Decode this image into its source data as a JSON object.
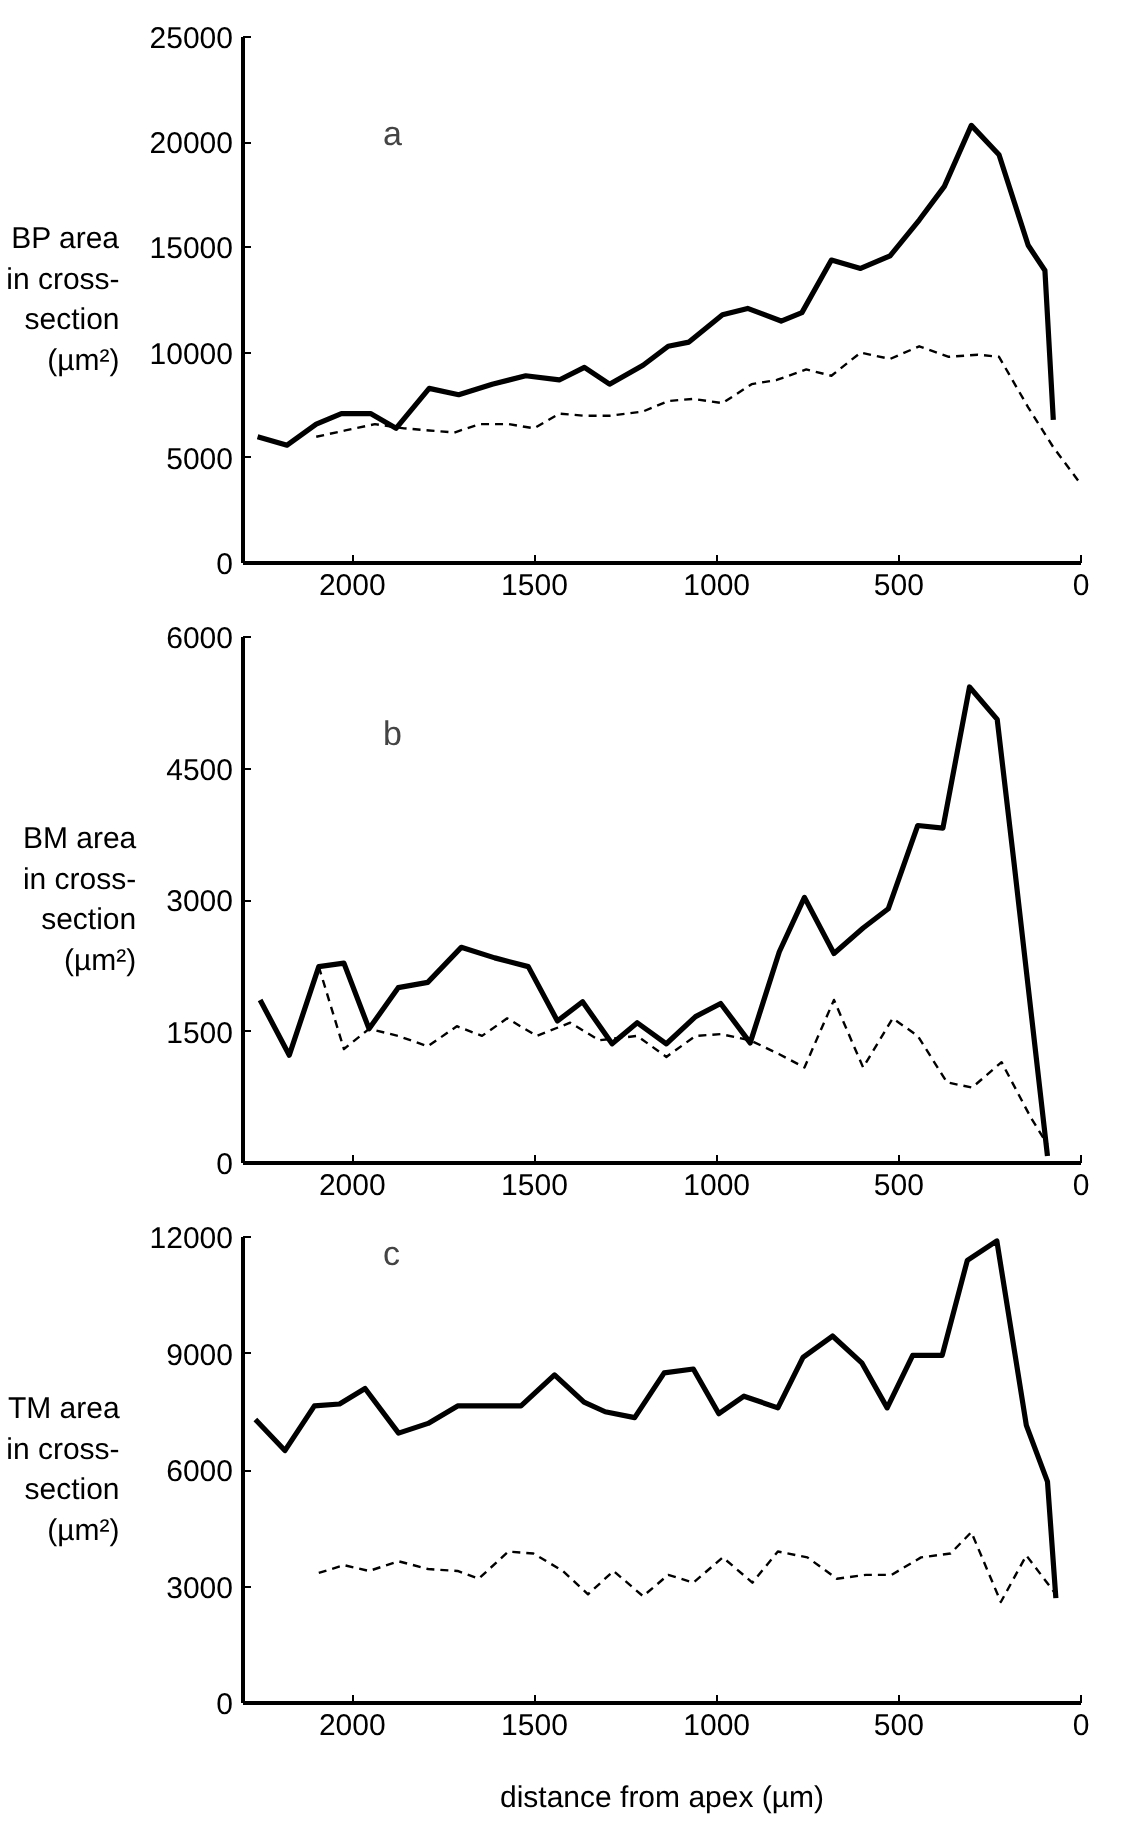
{
  "chart_data": [
    {
      "type": "line",
      "ylabel": "BP area\nin cross-\nsection\n(µm²)",
      "annotations": [
        "a"
      ],
      "xlim": [
        2300,
        0
      ],
      "xticks": [
        2000,
        1500,
        1000,
        500,
        0
      ],
      "ylim": [
        0,
        25000
      ],
      "yticks": [
        0,
        5000,
        10000,
        15000,
        20000,
        25000
      ],
      "grid": false,
      "marker": "none",
      "series": [
        {
          "color": "#000000",
          "line_style": "solid",
          "x": [
            2260,
            2179,
            2099,
            2030,
            1950,
            1880,
            1789,
            1708,
            1616,
            1524,
            1432,
            1363,
            1294,
            1202,
            1133,
            1076,
            984,
            915,
            823,
            766,
            685,
            605,
            524,
            444,
            375,
            301,
            225,
            145,
            99,
            76
          ],
          "values": [
            6000,
            5600,
            6600,
            7100,
            7100,
            6400,
            8300,
            8000,
            8500,
            8900,
            8700,
            9300,
            8500,
            9400,
            10300,
            10500,
            11800,
            12100,
            11500,
            11900,
            14400,
            14000,
            14600,
            16300,
            17900,
            20800,
            19400,
            15100,
            13900,
            6800
          ]
        },
        {
          "color": "#000000",
          "line_style": "dashed",
          "x": [
            2099,
            2019,
            1938,
            1858,
            1789,
            1720,
            1651,
            1570,
            1501,
            1432,
            1363,
            1294,
            1202,
            1133,
            1064,
            984,
            904,
            835,
            754,
            685,
            605,
            524,
            444,
            363,
            283,
            225,
            145,
            76,
            7
          ],
          "values": [
            6000,
            6300,
            6600,
            6400,
            6300,
            6200,
            6600,
            6600,
            6400,
            7100,
            7000,
            7000,
            7200,
            7700,
            7800,
            7600,
            8500,
            8700,
            9200,
            8900,
            10000,
            9700,
            10300,
            9800,
            9900,
            9800,
            7400,
            5500,
            3900
          ]
        }
      ]
    },
    {
      "type": "line",
      "ylabel": "BM area\nin cross-\nsection\n(µm²)",
      "annotations": [
        "b"
      ],
      "xlim": [
        2300,
        0
      ],
      "xticks": [
        2000,
        1500,
        1000,
        500,
        0
      ],
      "ylim": [
        0,
        6000
      ],
      "yticks": [
        0,
        1500,
        3000,
        4500,
        6000
      ],
      "grid": false,
      "marker": "none",
      "series": [
        {
          "color": "#000000",
          "line_style": "solid",
          "x": [
            2253,
            2173,
            2092,
            2023,
            1954,
            1874,
            1793,
            1701,
            1609,
            1517,
            1437,
            1368,
            1287,
            1218,
            1138,
            1058,
            989,
            908,
            828,
            759,
            678,
            598,
            529,
            448,
            379,
            306,
            230,
            184,
            92
          ],
          "values": [
            1860,
            1230,
            2240,
            2280,
            1530,
            2000,
            2060,
            2460,
            2340,
            2240,
            1620,
            1840,
            1360,
            1600,
            1360,
            1670,
            1820,
            1370,
            2410,
            3030,
            2390,
            2680,
            2900,
            3850,
            3820,
            5430,
            5060,
            3430,
            80
          ]
        },
        {
          "color": "#000000",
          "line_style": "dashed",
          "x": [
            2092,
            2023,
            1954,
            1874,
            1793,
            1713,
            1644,
            1575,
            1494,
            1402,
            1322,
            1218,
            1138,
            1058,
            989,
            908,
            828,
            759,
            678,
            598,
            517,
            448,
            368,
            299,
            218,
            138,
            92
          ],
          "values": [
            2240,
            1300,
            1530,
            1450,
            1330,
            1560,
            1450,
            1650,
            1450,
            1600,
            1400,
            1450,
            1210,
            1450,
            1470,
            1400,
            1240,
            1090,
            1860,
            1090,
            1650,
            1450,
            920,
            860,
            1150,
            520,
            210
          ]
        }
      ]
    },
    {
      "type": "line",
      "ylabel": "TM area\nin cross-\nsection\n(µm²)",
      "xlabel": "distance from apex (µm)",
      "annotations": [
        "c"
      ],
      "xlim": [
        2300,
        0
      ],
      "xticks": [
        2000,
        1500,
        1000,
        500,
        0
      ],
      "ylim": [
        0,
        12000
      ],
      "yticks": [
        0,
        3000,
        6000,
        9000,
        12000
      ],
      "grid": false,
      "marker": "none",
      "series": [
        {
          "color": "#000000",
          "line_style": "solid",
          "x": [
            2266,
            2185,
            2104,
            2035,
            1965,
            1873,
            1792,
            1711,
            1618,
            1537,
            1445,
            1364,
            1306,
            1225,
            1144,
            1064,
            994,
            925,
            832,
            763,
            682,
            601,
            532,
            462,
            381,
            312,
            231,
            150,
            92,
            69
          ],
          "values": [
            7300,
            6500,
            7650,
            7700,
            8100,
            6950,
            7200,
            7650,
            7650,
            7650,
            8450,
            7750,
            7500,
            7350,
            8500,
            8600,
            7450,
            7900,
            7600,
            8900,
            9450,
            8750,
            7600,
            8950,
            8950,
            11400,
            11900,
            7150,
            5700,
            2700
          ]
        },
        {
          "color": "#000000",
          "line_style": "dashed",
          "x": [
            2092,
            2023,
            1954,
            1873,
            1792,
            1711,
            1653,
            1572,
            1503,
            1422,
            1353,
            1283,
            1202,
            1133,
            1064,
            983,
            902,
            832,
            751,
            670,
            590,
            520,
            439,
            358,
            301,
            220,
            150,
            69
          ],
          "values": [
            3350,
            3550,
            3400,
            3650,
            3450,
            3400,
            3200,
            3900,
            3850,
            3400,
            2800,
            3400,
            2750,
            3300,
            3100,
            3750,
            3100,
            3900,
            3750,
            3200,
            3300,
            3300,
            3750,
            3850,
            4400,
            2600,
            3800,
            2800
          ]
        }
      ]
    }
  ]
}
